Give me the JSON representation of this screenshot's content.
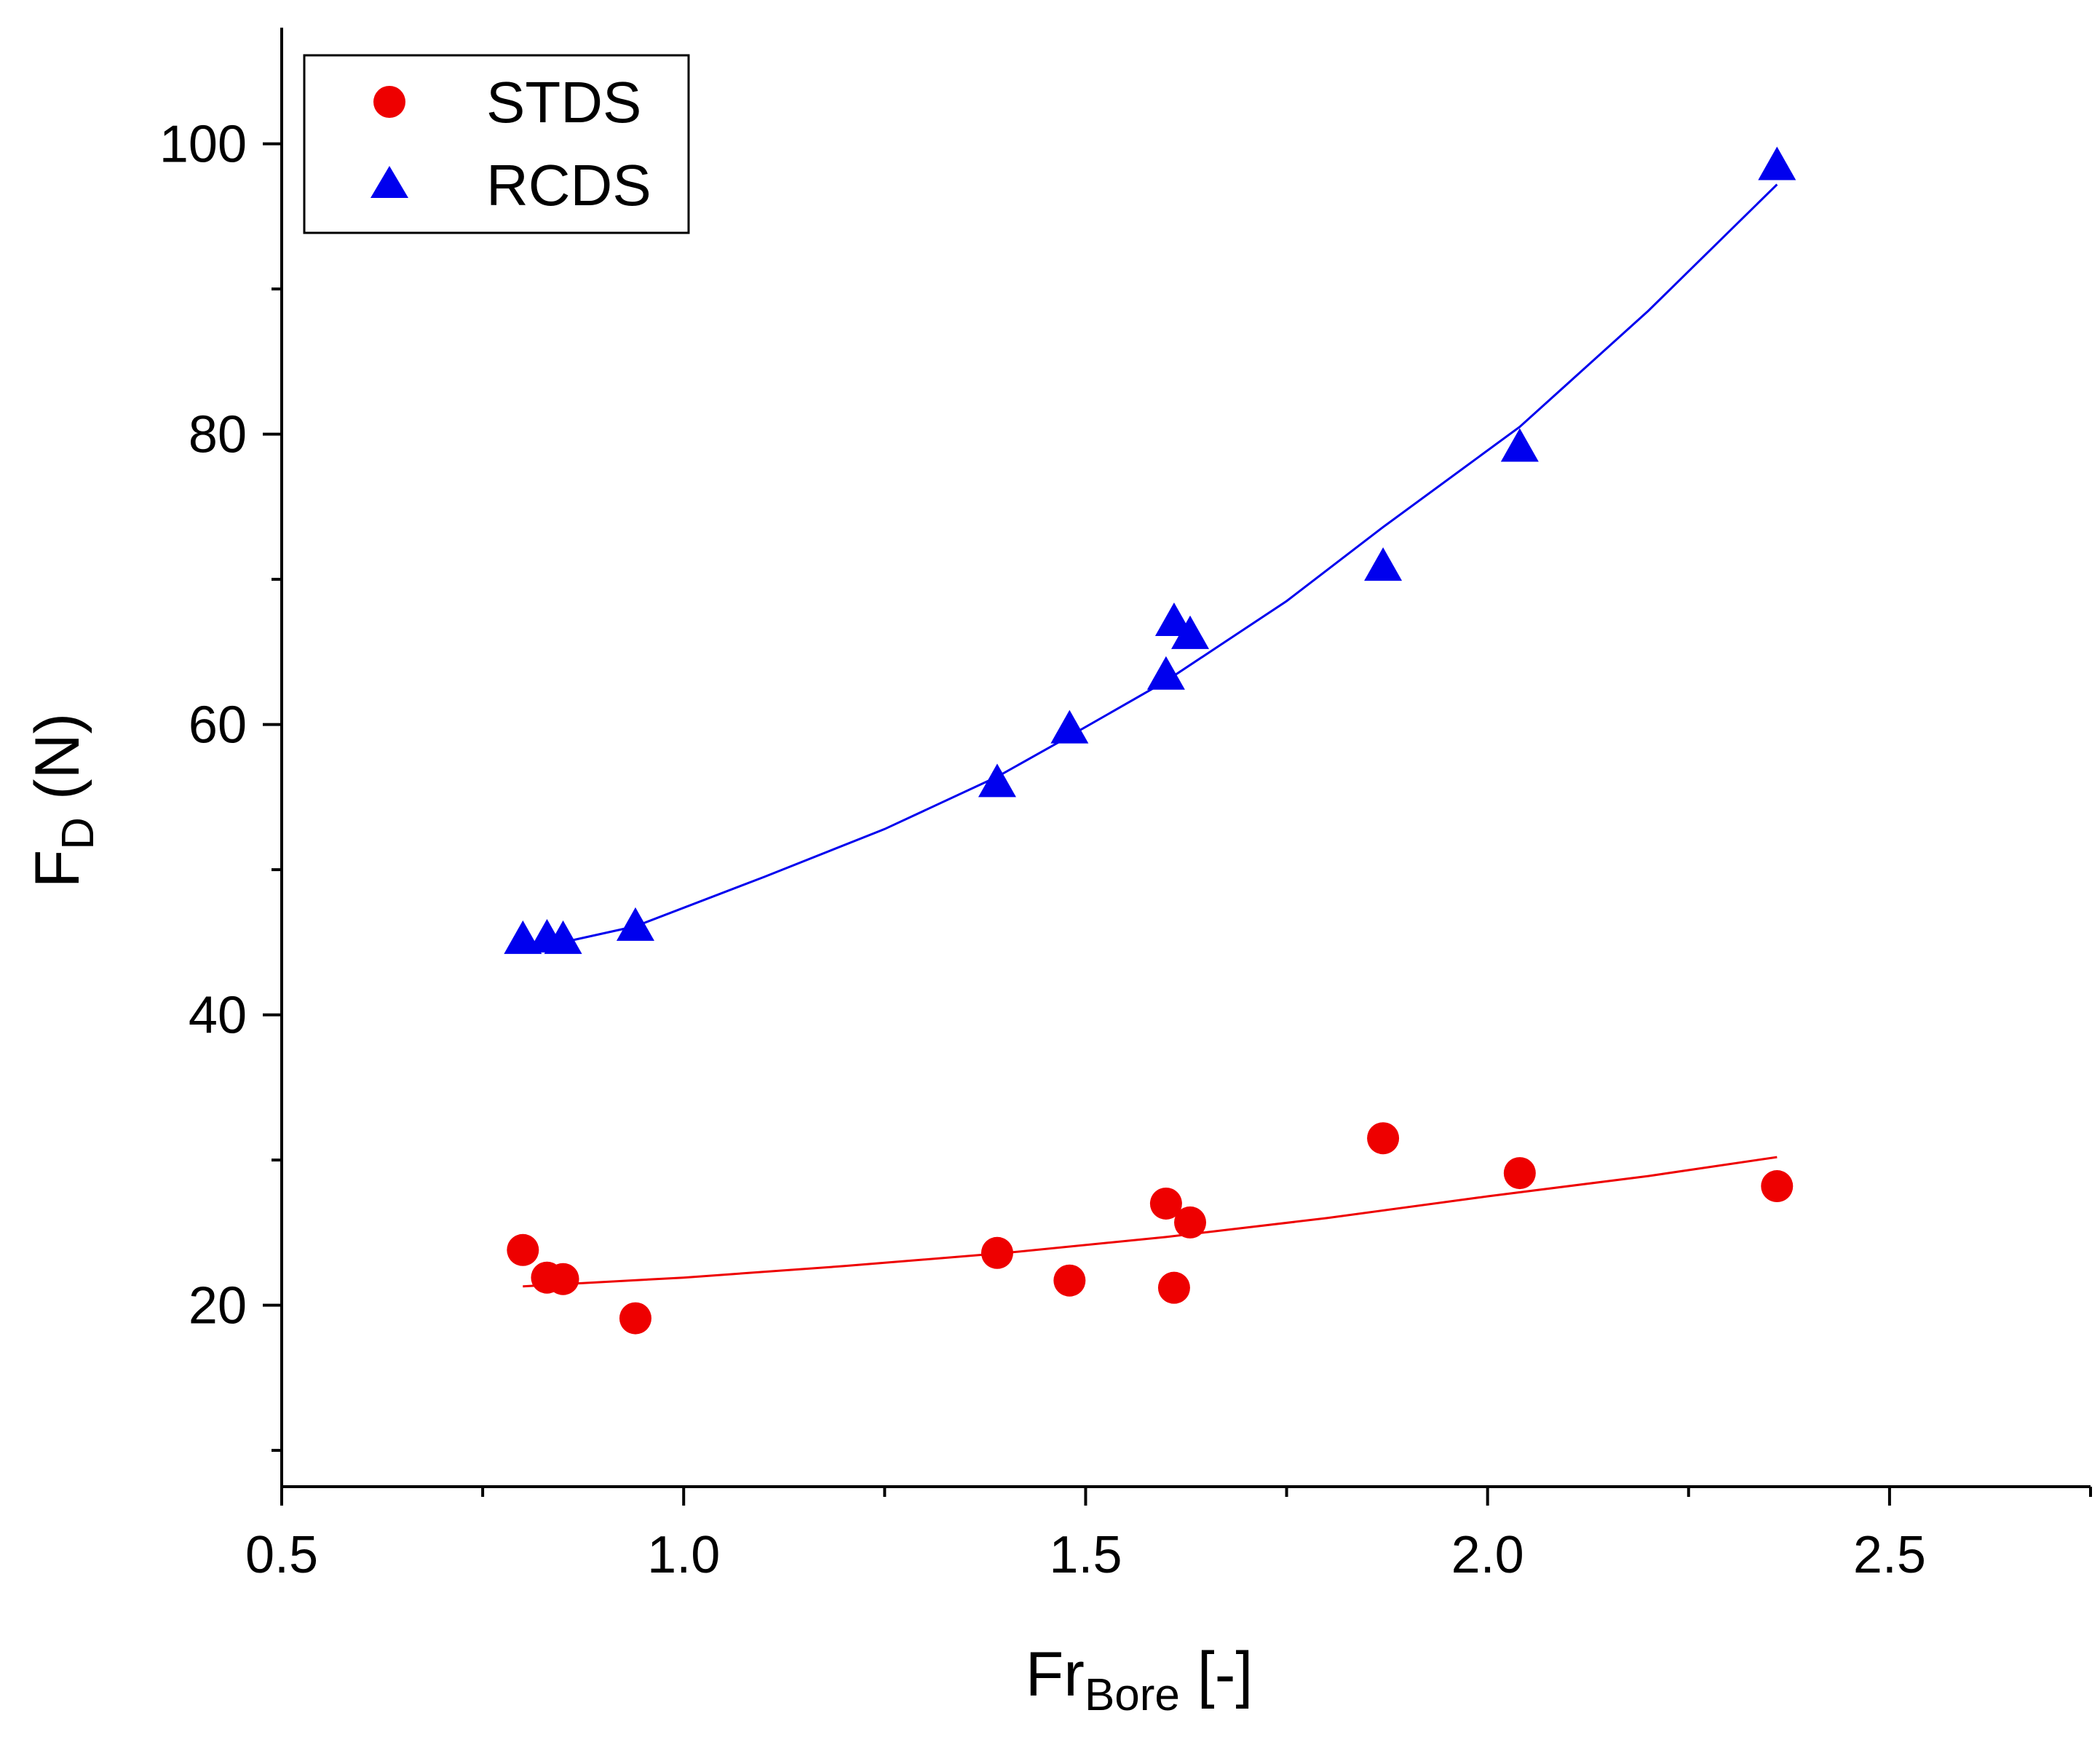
{
  "chart_data": {
    "type": "scatter",
    "xlabel": {
      "main": "Fr",
      "sub": "Bore",
      "suffix": " [-]"
    },
    "ylabel": {
      "main": "F",
      "sub": "D",
      "suffix": " (N)"
    },
    "xlim": [
      0.5,
      2.75
    ],
    "ylim": [
      7.5,
      108
    ],
    "x_ticks": [
      {
        "value": 0.5,
        "label": "0.5"
      },
      {
        "value": 1.0,
        "label": "1.0"
      },
      {
        "value": 1.5,
        "label": "1.5"
      },
      {
        "value": 2.0,
        "label": "2.0"
      },
      {
        "value": 2.5,
        "label": "2.5"
      }
    ],
    "x_minor_ticks": [
      0.75,
      1.25,
      1.75,
      2.25,
      2.75
    ],
    "y_ticks": [
      {
        "value": 20,
        "label": "20"
      },
      {
        "value": 40,
        "label": "40"
      },
      {
        "value": 60,
        "label": "60"
      },
      {
        "value": 80,
        "label": "80"
      },
      {
        "value": 100,
        "label": "100"
      }
    ],
    "y_minor_ticks": [
      10,
      30,
      50,
      70,
      90
    ],
    "grid": false,
    "legend_position": "top-left",
    "series": [
      {
        "name": "STDS",
        "marker": "circle",
        "color": "#ee0000",
        "points": [
          {
            "x": 0.8,
            "y": 23.8
          },
          {
            "x": 0.83,
            "y": 21.9
          },
          {
            "x": 0.85,
            "y": 21.8
          },
          {
            "x": 0.94,
            "y": 19.1
          },
          {
            "x": 1.39,
            "y": 23.6
          },
          {
            "x": 1.48,
            "y": 21.7
          },
          {
            "x": 1.6,
            "y": 27.0
          },
          {
            "x": 1.61,
            "y": 21.2
          },
          {
            "x": 1.63,
            "y": 25.7
          },
          {
            "x": 1.87,
            "y": 31.5
          },
          {
            "x": 2.04,
            "y": 29.1
          },
          {
            "x": 2.36,
            "y": 28.2
          }
        ],
        "fit": [
          {
            "x": 0.8,
            "y": 21.3
          },
          {
            "x": 1.0,
            "y": 21.9
          },
          {
            "x": 1.2,
            "y": 22.7
          },
          {
            "x": 1.4,
            "y": 23.6
          },
          {
            "x": 1.6,
            "y": 24.7
          },
          {
            "x": 1.8,
            "y": 26.0
          },
          {
            "x": 2.0,
            "y": 27.5
          },
          {
            "x": 2.2,
            "y": 28.9
          },
          {
            "x": 2.36,
            "y": 30.2
          }
        ]
      },
      {
        "name": "RCDS",
        "marker": "triangle",
        "color": "#0000ee",
        "points": [
          {
            "x": 0.8,
            "y": 45.1
          },
          {
            "x": 0.83,
            "y": 45.2
          },
          {
            "x": 0.85,
            "y": 45.1
          },
          {
            "x": 0.94,
            "y": 46.0
          },
          {
            "x": 1.39,
            "y": 55.9
          },
          {
            "x": 1.48,
            "y": 59.6
          },
          {
            "x": 1.6,
            "y": 63.3
          },
          {
            "x": 1.61,
            "y": 67.0
          },
          {
            "x": 1.63,
            "y": 66.1
          },
          {
            "x": 1.87,
            "y": 70.8
          },
          {
            "x": 2.04,
            "y": 79.0
          },
          {
            "x": 2.36,
            "y": 98.4
          }
        ],
        "fit": [
          {
            "x": 0.8,
            "y": 44.8
          },
          {
            "x": 0.85,
            "y": 45.0
          },
          {
            "x": 0.94,
            "y": 46.1
          },
          {
            "x": 1.1,
            "y": 49.5
          },
          {
            "x": 1.25,
            "y": 52.8
          },
          {
            "x": 1.39,
            "y": 56.4
          },
          {
            "x": 1.48,
            "y": 59.2
          },
          {
            "x": 1.6,
            "y": 63.0
          },
          {
            "x": 1.75,
            "y": 68.5
          },
          {
            "x": 1.87,
            "y": 73.6
          },
          {
            "x": 2.04,
            "y": 80.5
          },
          {
            "x": 2.2,
            "y": 88.5
          },
          {
            "x": 2.36,
            "y": 97.2
          }
        ]
      }
    ]
  }
}
